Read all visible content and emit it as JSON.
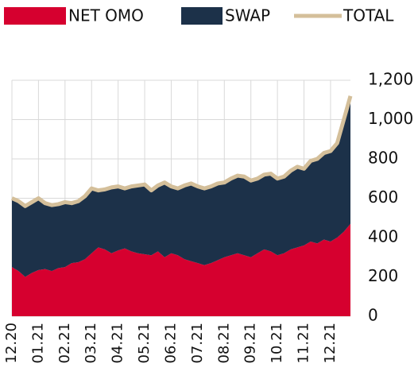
{
  "chart_data": {
    "type": "stacked-area",
    "categories": [
      "12.20",
      null,
      null,
      null,
      "01.21",
      null,
      null,
      null,
      "02.21",
      null,
      null,
      null,
      "03.21",
      null,
      null,
      null,
      "04.21",
      null,
      null,
      null,
      "05.21",
      null,
      null,
      null,
      "06.21",
      null,
      null,
      null,
      "07.21",
      null,
      null,
      null,
      "08.21",
      null,
      null,
      null,
      "09.21",
      null,
      null,
      null,
      "10.21",
      null,
      null,
      null,
      "11.21",
      null,
      null,
      null,
      "12.21",
      null,
      null,
      null
    ],
    "series": [
      {
        "name": "NET OMO",
        "color": "#d6002f",
        "values": [
          250,
          230,
          200,
          220,
          235,
          240,
          230,
          245,
          250,
          270,
          275,
          290,
          320,
          350,
          340,
          320,
          335,
          345,
          330,
          320,
          315,
          310,
          330,
          300,
          320,
          310,
          290,
          280,
          270,
          260,
          270,
          285,
          300,
          310,
          320,
          310,
          300,
          320,
          340,
          330,
          310,
          320,
          340,
          350,
          360,
          380,
          370,
          390,
          380,
          400,
          430,
          470
        ]
      },
      {
        "name": "SWAP",
        "color": "#1c3149",
        "values": [
          350,
          355,
          360,
          360,
          365,
          335,
          335,
          325,
          330,
          305,
          310,
          320,
          330,
          290,
          305,
          335,
          325,
          305,
          330,
          345,
          355,
          330,
          335,
          380,
          340,
          340,
          375,
          395,
          390,
          390,
          390,
          390,
          380,
          390,
          395,
          400,
          390,
          380,
          380,
          395,
          390,
          390,
          400,
          410,
          390,
          410,
          430,
          440,
          460,
          480,
          570,
          650
        ]
      },
      {
        "name": "TOTAL",
        "color": "#d4bf9a",
        "type": "line",
        "values": [
          600,
          585,
          560,
          580,
          600,
          575,
          565,
          570,
          580,
          575,
          585,
          610,
          650,
          640,
          645,
          655,
          660,
          650,
          660,
          665,
          670,
          640,
          665,
          680,
          660,
          650,
          665,
          675,
          660,
          650,
          660,
          675,
          680,
          700,
          715,
          710,
          690,
          700,
          720,
          725,
          700,
          710,
          740,
          760,
          750,
          790,
          800,
          830,
          840,
          880,
          1000,
          1120
        ]
      }
    ],
    "ylim": [
      0,
      1200
    ],
    "yticks": [
      0,
      200,
      400,
      600,
      800,
      {
        "value": 1000,
        "label": "1,000"
      },
      {
        "value": 1200,
        "label": "1,200"
      }
    ],
    "grid": true,
    "legend": "top"
  }
}
